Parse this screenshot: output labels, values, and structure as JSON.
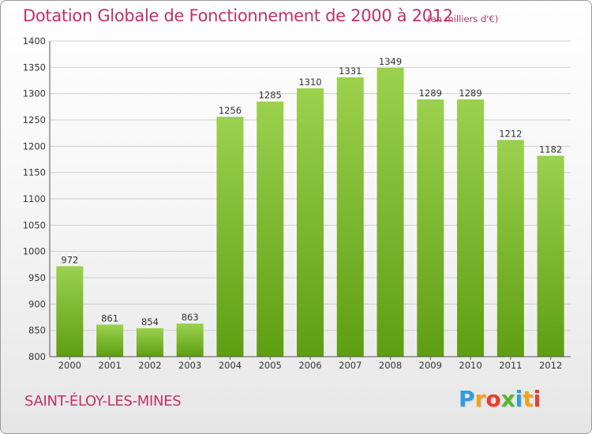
{
  "title": "Dotation Globale de Fonctionnement de 2000 à 2012",
  "subtitle": "(en milliers d'€)",
  "commune": "SAINT-ÉLOY-LES-MINES",
  "logo": {
    "letters": [
      {
        "char": "P",
        "color": "#2e9ee0"
      },
      {
        "char": "r",
        "color": "#f2a21a"
      },
      {
        "char": "o",
        "color": "#e8402e"
      },
      {
        "char": "x",
        "color": "#57b52e"
      },
      {
        "char": "i",
        "color": "#2e9ee0"
      },
      {
        "char": "t",
        "color": "#f2a21a"
      },
      {
        "char": "i",
        "color": "#e8402e"
      }
    ]
  },
  "colors": {
    "accent": "#c0306a",
    "bar_top": "#9bd14e",
    "bar_bottom": "#5e9e12",
    "grid": "#cfcfcf",
    "axis_text": "#333333"
  },
  "chart_data": {
    "type": "bar",
    "title": "Dotation Globale de Fonctionnement de 2000 à 2012",
    "xlabel": "",
    "ylabel": "",
    "categories": [
      "2000",
      "2001",
      "2002",
      "2003",
      "2004",
      "2005",
      "2006",
      "2007",
      "2008",
      "2009",
      "2010",
      "2011",
      "2012"
    ],
    "values": [
      972,
      861,
      854,
      863,
      1256,
      1285,
      1310,
      1331,
      1349,
      1289,
      1289,
      1212,
      1182
    ],
    "ylim": [
      800,
      1400
    ],
    "yticks": [
      800,
      850,
      900,
      950,
      1000,
      1050,
      1100,
      1150,
      1200,
      1250,
      1300,
      1350,
      1400
    ],
    "grid": true,
    "legend": "none"
  }
}
